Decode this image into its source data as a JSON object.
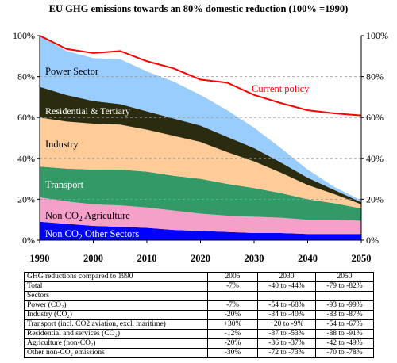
{
  "chart_data": {
    "type": "area",
    "title": "EU GHG emissions towards an 80% domestic reduction (100% =1990)",
    "x": [
      1990,
      1995,
      2000,
      2005,
      2010,
      2015,
      2020,
      2025,
      2030,
      2035,
      2040,
      2045,
      2050
    ],
    "xlim": [
      1990,
      2050
    ],
    "ylim": [
      0,
      100
    ],
    "yticks": [
      "0%",
      "20%",
      "40%",
      "60%",
      "80%",
      "100%"
    ],
    "xticks": [
      "1990",
      "2000",
      "2010",
      "2020",
      "2030",
      "2040",
      "2050"
    ],
    "series": [
      {
        "name": "Non CO2 Other Sectors",
        "color": "#0000ff",
        "values": [
          9,
          8,
          7,
          6.5,
          6,
          5,
          4.5,
          4,
          3.5,
          3.5,
          3,
          3,
          3
        ]
      },
      {
        "name": "Non CO2 Agriculture",
        "color": "#f4a0c8",
        "values": [
          12,
          11,
          10.5,
          10.5,
          10,
          9.5,
          8.5,
          8,
          8,
          7.5,
          7,
          7,
          6.5
        ]
      },
      {
        "name": "Transport",
        "color": "#339966",
        "values": [
          15,
          16,
          17,
          17.5,
          17.5,
          17,
          17,
          15.5,
          14,
          12,
          10,
          8,
          6
        ]
      },
      {
        "name": "Industry",
        "color": "#ffcc99",
        "values": [
          24,
          23,
          22.5,
          22,
          20.5,
          19.5,
          18,
          15.5,
          13,
          10,
          7,
          4.5,
          2
        ]
      },
      {
        "name": "Residential & Tertiary",
        "color": "#2b2b10",
        "values": [
          15,
          13,
          11,
          10,
          9,
          8.5,
          8,
          7.5,
          6.5,
          5,
          3.5,
          2,
          1
        ]
      },
      {
        "name": "Power Sector",
        "color": "#99ccff",
        "values": [
          25,
          21.5,
          21,
          22,
          19.5,
          18,
          15,
          13,
          10,
          7,
          4,
          1.5,
          1
        ]
      }
    ],
    "line": {
      "name": "Current policy",
      "color": "#ff0000",
      "values": [
        100,
        93.5,
        91.5,
        92.5,
        87.5,
        84,
        78.5,
        77,
        71,
        67,
        63.5,
        62,
        61
      ]
    }
  },
  "table": {
    "headers": [
      "GHG reductions compared to 1990",
      "2005",
      "2030",
      "2050"
    ],
    "total": [
      "Total",
      "-7%",
      "-40 to -44%",
      "-79 to -82%"
    ],
    "sectors_label": "Sectors",
    "rows": [
      [
        "Power (CO₂)",
        "-7%",
        "-54 to -68%",
        "-93 to -99%"
      ],
      [
        "Industry (CO₂)",
        "-20%",
        "-34 to -40%",
        "-83 to -87%"
      ],
      [
        "Transport (incl. CO2 aviation, excl. maritime)",
        "+30%",
        "+20 to -9%",
        "-54 to -67%"
      ],
      [
        "Residential and services (CO₂)",
        "-12%",
        "-37 to -53%",
        "-88 to -91%"
      ],
      [
        "Agriculture (non-CO₂)",
        "-20%",
        "-36 to -37%",
        "-42 to -49%"
      ],
      [
        "Other non-CO₂ emissions",
        "-30%",
        "-72 to -73%",
        "-70 to -78%"
      ]
    ]
  }
}
